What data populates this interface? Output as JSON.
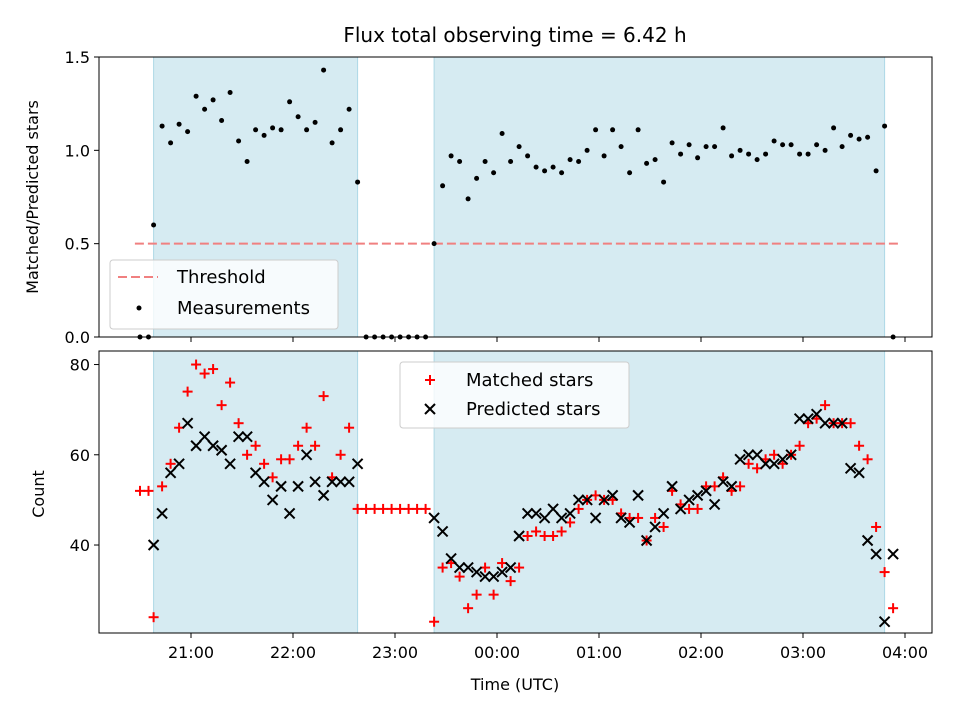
{
  "chart_data": [
    {
      "type": "scatter",
      "panel": "top",
      "title": "Flux total observing time = 6.42 h",
      "xlabel": "",
      "ylabel": "Matched/Predicted stars",
      "ylim": [
        0,
        1.5
      ],
      "yticks": [
        "0.0",
        "0.5",
        "1.0",
        "1.5"
      ],
      "grid": false,
      "legend_position": "lower-left",
      "threshold": {
        "name": "Threshold",
        "value": 0.5,
        "x_range": [
          "20:27",
          "03:57"
        ],
        "color": "#f08080"
      },
      "series": [
        {
          "name": "Measurements",
          "color": "#000000",
          "x": [
            "20:30",
            "20:35",
            "20:38",
            "20:43",
            "20:48",
            "20:53",
            "20:58",
            "21:03",
            "21:08",
            "21:13",
            "21:18",
            "21:23",
            "21:28",
            "21:33",
            "21:38",
            "21:43",
            "21:48",
            "21:53",
            "21:58",
            "22:03",
            "22:08",
            "22:13",
            "22:18",
            "22:23",
            "22:28",
            "22:33",
            "22:38",
            "22:43",
            "22:48",
            "22:53",
            "22:58",
            "23:03",
            "23:08",
            "23:13",
            "23:18",
            "23:23",
            "23:28",
            "23:33",
            "23:38",
            "23:43",
            "23:48",
            "23:53",
            "23:58",
            "00:03",
            "00:08",
            "00:13",
            "00:18",
            "00:23",
            "00:28",
            "00:33",
            "00:38",
            "00:43",
            "00:48",
            "00:53",
            "00:58",
            "01:03",
            "01:08",
            "01:13",
            "01:18",
            "01:23",
            "01:28",
            "01:33",
            "01:38",
            "01:43",
            "01:48",
            "01:53",
            "01:58",
            "02:03",
            "02:08",
            "02:13",
            "02:18",
            "02:23",
            "02:28",
            "02:33",
            "02:38",
            "02:43",
            "02:48",
            "02:53",
            "02:58",
            "03:03",
            "03:08",
            "03:13",
            "03:18",
            "03:23",
            "03:28",
            "03:33",
            "03:38",
            "03:43",
            "03:48",
            "03:53"
          ],
          "values": [
            0.0,
            0.0,
            0.6,
            1.13,
            1.04,
            1.14,
            1.1,
            1.29,
            1.22,
            1.27,
            1.16,
            1.31,
            1.05,
            0.94,
            1.11,
            1.08,
            1.12,
            1.11,
            1.26,
            1.18,
            1.11,
            1.15,
            1.43,
            1.04,
            1.11,
            1.22,
            0.83,
            0.0,
            0.0,
            0.0,
            0.0,
            0.0,
            0.0,
            0.0,
            0.0,
            0.5,
            0.81,
            0.97,
            0.94,
            0.74,
            0.85,
            0.94,
            0.88,
            1.09,
            0.94,
            1.02,
            0.97,
            0.91,
            0.89,
            0.91,
            0.88,
            0.95,
            0.94,
            1.0,
            1.11,
            0.97,
            1.11,
            1.02,
            0.88,
            1.11,
            0.93,
            0.95,
            0.83,
            1.04,
            0.98,
            1.03,
            0.96,
            1.02,
            1.02,
            1.12,
            0.97,
            1.0,
            0.98,
            0.95,
            0.98,
            1.05,
            1.03,
            1.03,
            0.98,
            0.98,
            1.03,
            1.0,
            1.12,
            1.02,
            1.08,
            1.06,
            1.07,
            0.89,
            1.13,
            0.0
          ]
        }
      ],
      "shaded_intervals": [
        [
          "20:38",
          "22:38"
        ],
        [
          "23:23",
          "03:48"
        ]
      ]
    },
    {
      "type": "scatter",
      "panel": "bottom",
      "title": "",
      "xlabel": "Time (UTC)",
      "ylabel": "Count",
      "ylim": [
        20.5,
        83
      ],
      "yticks": [
        "40",
        "60",
        "80"
      ],
      "xticks": [
        "21:00",
        "22:00",
        "23:00",
        "00:00",
        "01:00",
        "02:00",
        "03:00",
        "04:00"
      ],
      "grid": false,
      "legend_position": "top-center",
      "series": [
        {
          "name": "Matched stars",
          "color": "#ff0000",
          "marker": "plus",
          "x": [
            "20:30",
            "20:35",
            "20:38",
            "20:43",
            "20:48",
            "20:53",
            "20:58",
            "21:03",
            "21:08",
            "21:13",
            "21:18",
            "21:23",
            "21:28",
            "21:33",
            "21:38",
            "21:43",
            "21:48",
            "21:53",
            "21:58",
            "22:03",
            "22:08",
            "22:13",
            "22:18",
            "22:23",
            "22:28",
            "22:33",
            "22:38",
            "22:43",
            "22:48",
            "22:53",
            "22:58",
            "23:03",
            "23:08",
            "23:13",
            "23:18",
            "23:23",
            "23:28",
            "23:33",
            "23:38",
            "23:43",
            "23:48",
            "23:53",
            "23:58",
            "00:03",
            "00:08",
            "00:13",
            "00:18",
            "00:23",
            "00:28",
            "00:33",
            "00:38",
            "00:43",
            "00:48",
            "00:53",
            "00:58",
            "01:03",
            "01:08",
            "01:13",
            "01:18",
            "01:23",
            "01:28",
            "01:33",
            "01:38",
            "01:43",
            "01:48",
            "01:53",
            "01:58",
            "02:03",
            "02:08",
            "02:13",
            "02:18",
            "02:23",
            "02:28",
            "02:33",
            "02:38",
            "02:43",
            "02:48",
            "02:53",
            "02:58",
            "03:03",
            "03:08",
            "03:13",
            "03:18",
            "03:23",
            "03:28",
            "03:33",
            "03:38",
            "03:43",
            "03:48",
            "03:53"
          ],
          "values": [
            52,
            52,
            24,
            53,
            58,
            66,
            74,
            80,
            78,
            79,
            71,
            76,
            67,
            60,
            62,
            58,
            55,
            59,
            59,
            62,
            66,
            62,
            73,
            55,
            60,
            66,
            48,
            48,
            48,
            48,
            48,
            48,
            48,
            48,
            48,
            23,
            35,
            36,
            33,
            26,
            29,
            35,
            29,
            36,
            32,
            35,
            42,
            43,
            42,
            42,
            43,
            45,
            48,
            50,
            51,
            50,
            50,
            47,
            46,
            46,
            41,
            46,
            44,
            52,
            49,
            48,
            48,
            53,
            53,
            55,
            52,
            53,
            58,
            57,
            59,
            60,
            58,
            60,
            62,
            67,
            68,
            71,
            67,
            67,
            67,
            62,
            59,
            44,
            34,
            26
          ]
        },
        {
          "name": "Predicted stars",
          "color": "#000000",
          "marker": "x",
          "x": [
            "20:38",
            "20:43",
            "20:48",
            "20:53",
            "20:58",
            "21:03",
            "21:08",
            "21:13",
            "21:18",
            "21:23",
            "21:28",
            "21:33",
            "21:38",
            "21:43",
            "21:48",
            "21:53",
            "21:58",
            "22:03",
            "22:08",
            "22:13",
            "22:18",
            "22:23",
            "22:28",
            "22:33",
            "22:38",
            "23:23",
            "23:28",
            "23:33",
            "23:38",
            "23:43",
            "23:48",
            "23:53",
            "23:58",
            "00:03",
            "00:08",
            "00:13",
            "00:18",
            "00:23",
            "00:28",
            "00:33",
            "00:38",
            "00:43",
            "00:48",
            "00:53",
            "00:58",
            "01:03",
            "01:08",
            "01:13",
            "01:18",
            "01:23",
            "01:28",
            "01:33",
            "01:38",
            "01:43",
            "01:48",
            "01:53",
            "01:58",
            "02:03",
            "02:08",
            "02:13",
            "02:18",
            "02:23",
            "02:28",
            "02:33",
            "02:38",
            "02:43",
            "02:48",
            "02:53",
            "02:58",
            "03:03",
            "03:08",
            "03:13",
            "03:18",
            "03:23",
            "03:28",
            "03:33",
            "03:38",
            "03:43",
            "03:48",
            "03:53"
          ],
          "values": [
            40,
            47,
            56,
            58,
            67,
            62,
            64,
            62,
            61,
            58,
            64,
            64,
            56,
            54,
            50,
            53,
            47,
            53,
            60,
            54,
            51,
            54,
            54,
            54,
            58,
            46,
            43,
            37,
            35,
            35,
            34,
            33,
            33,
            34,
            35,
            42,
            47,
            47,
            46,
            48,
            46,
            47,
            50,
            50,
            46,
            50,
            51,
            46,
            45,
            51,
            41,
            44,
            47,
            53,
            48,
            50,
            51,
            52,
            49,
            54,
            53,
            59,
            60,
            60,
            58,
            58,
            59,
            60,
            68,
            68,
            69,
            67,
            67,
            67,
            57,
            56,
            41,
            38,
            23,
            38
          ]
        }
      ],
      "shaded_intervals": [
        [
          "20:38",
          "22:38"
        ],
        [
          "23:23",
          "03:48"
        ]
      ]
    }
  ]
}
